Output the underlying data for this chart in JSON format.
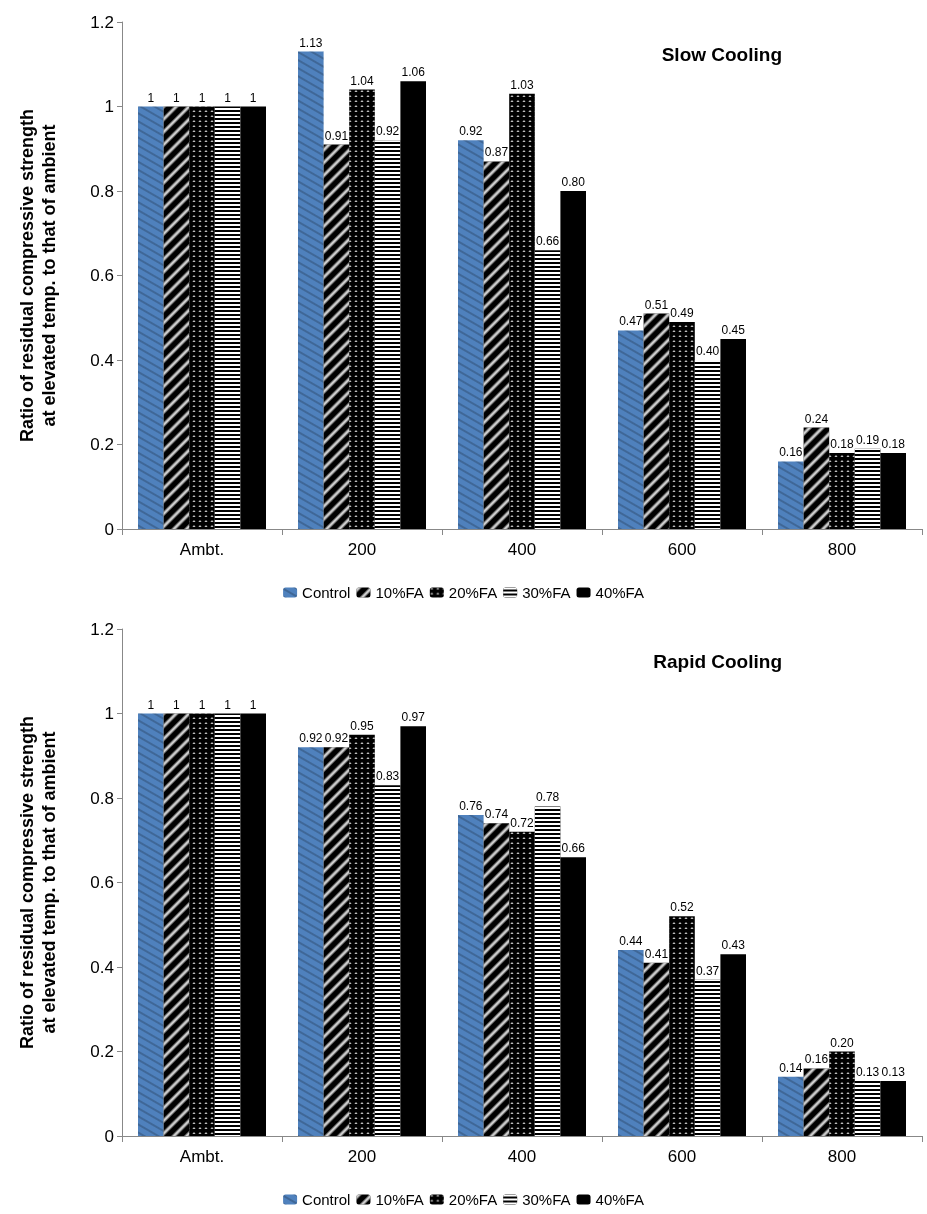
{
  "chart_data": [
    {
      "type": "bar",
      "title": "Slow Cooling",
      "ylabel": "Ratio of residual compressive strength\nat elevated temp. to that of ambient",
      "categories": [
        "Ambt.",
        "200",
        "400",
        "600",
        "800"
      ],
      "ylim": [
        0,
        1.2
      ],
      "yticks": [
        0,
        0.2,
        0.4,
        0.6,
        0.8,
        1,
        1.2
      ],
      "grid": false,
      "legend": "bottom",
      "series": [
        {
          "name": "Control",
          "color": "#4f81bd",
          "values": [
            1,
            1.13,
            0.92,
            0.47,
            0.16
          ],
          "value_labels": [
            "1",
            "1.13",
            "0.92",
            "0.47",
            "0.16"
          ]
        },
        {
          "name": "10%FA",
          "color": "#000000",
          "values": [
            1,
            0.91,
            0.87,
            0.51,
            0.24
          ],
          "value_labels": [
            "1",
            "0.91",
            "0.87",
            "0.51",
            "0.24"
          ]
        },
        {
          "name": "20%FA",
          "color": "#000000",
          "values": [
            1,
            1.04,
            1.03,
            0.49,
            0.18
          ],
          "value_labels": [
            "1",
            "1.04",
            "1.03",
            "0.49",
            "0.18"
          ]
        },
        {
          "name": "30%FA",
          "color": "#000000",
          "values": [
            1,
            0.92,
            0.66,
            0.4,
            0.19
          ],
          "value_labels": [
            "1",
            "0.92",
            "0.66",
            "0.40",
            "0.19"
          ]
        },
        {
          "name": "40%FA",
          "color": "#000000",
          "values": [
            1,
            1.06,
            0.8,
            0.45,
            0.18
          ],
          "value_labels": [
            "1",
            "1.06",
            "0.80",
            "0.45",
            "0.18"
          ]
        }
      ]
    },
    {
      "type": "bar",
      "title": "Rapid Cooling",
      "ylabel": "Ratio of residual compressive strength\nat elevated temp. to that of ambient",
      "categories": [
        "Ambt.",
        "200",
        "400",
        "600",
        "800"
      ],
      "ylim": [
        0,
        1.2
      ],
      "yticks": [
        0,
        0.2,
        0.4,
        0.6,
        0.8,
        1,
        1.2
      ],
      "grid": false,
      "legend": "bottom",
      "series": [
        {
          "name": "Control",
          "color": "#4f81bd",
          "values": [
            1,
            0.92,
            0.76,
            0.44,
            0.14
          ],
          "value_labels": [
            "1",
            "0.92",
            "0.76",
            "0.44",
            "0.14"
          ]
        },
        {
          "name": "10%FA",
          "color": "#000000",
          "values": [
            1,
            0.92,
            0.74,
            0.41,
            0.16
          ],
          "value_labels": [
            "1",
            "0.92",
            "0.74",
            "0.41",
            "0.16"
          ]
        },
        {
          "name": "20%FA",
          "color": "#000000",
          "values": [
            1,
            0.95,
            0.72,
            0.52,
            0.2
          ],
          "value_labels": [
            "1",
            "0.95",
            "0.72",
            "0.52",
            "0.20"
          ]
        },
        {
          "name": "30%FA",
          "color": "#000000",
          "values": [
            1,
            0.83,
            0.78,
            0.37,
            0.13
          ],
          "value_labels": [
            "1",
            "0.83",
            "0.78",
            "0.37",
            "0.13"
          ]
        },
        {
          "name": "40%FA",
          "color": "#000000",
          "values": [
            1,
            0.97,
            0.66,
            0.43,
            0.13
          ],
          "value_labels": [
            "1",
            "0.97",
            "0.66",
            "0.43",
            "0.13"
          ]
        }
      ]
    }
  ]
}
